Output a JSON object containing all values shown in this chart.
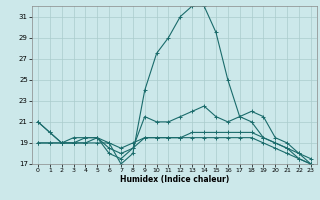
{
  "xlabel": "Humidex (Indice chaleur)",
  "bg_color": "#cce8ea",
  "grid_color": "#aacccc",
  "line_color": "#1a6b6b",
  "xlim": [
    -0.5,
    23.5
  ],
  "ylim": [
    17,
    32
  ],
  "yticks": [
    17,
    19,
    21,
    23,
    25,
    27,
    29,
    31
  ],
  "xticks": [
    0,
    1,
    2,
    3,
    4,
    5,
    6,
    7,
    8,
    9,
    10,
    11,
    12,
    13,
    14,
    15,
    16,
    17,
    18,
    19,
    20,
    21,
    22,
    23
  ],
  "lines": [
    {
      "x": [
        0,
        1,
        2,
        3,
        4,
        5,
        6,
        7,
        8,
        9,
        10,
        11,
        12,
        13,
        14,
        15,
        16,
        17,
        18,
        19,
        20,
        21,
        22,
        23
      ],
      "y": [
        21.0,
        20.0,
        19.0,
        19.0,
        19.0,
        19.5,
        19.0,
        17.0,
        18.0,
        24.0,
        27.5,
        29.0,
        31.0,
        32.0,
        32.0,
        29.5,
        25.0,
        21.5,
        21.0,
        19.5,
        19.0,
        18.5,
        17.5,
        17.0
      ]
    },
    {
      "x": [
        0,
        1,
        2,
        3,
        4,
        5,
        6,
        7,
        8,
        9,
        10,
        11,
        12,
        13,
        14,
        15,
        16,
        17,
        18,
        19,
        20,
        21,
        22,
        23
      ],
      "y": [
        21.0,
        20.0,
        19.0,
        19.5,
        19.5,
        19.5,
        18.5,
        18.0,
        18.5,
        21.5,
        21.0,
        21.0,
        21.5,
        22.0,
        22.5,
        21.5,
        21.0,
        21.5,
        22.0,
        21.5,
        19.5,
        19.0,
        18.0,
        17.5
      ]
    },
    {
      "x": [
        0,
        1,
        2,
        3,
        4,
        5,
        6,
        7,
        8,
        9,
        10,
        11,
        12,
        13,
        14,
        15,
        16,
        17,
        18,
        19,
        20,
        21,
        22,
        23
      ],
      "y": [
        19.0,
        19.0,
        19.0,
        19.0,
        19.5,
        19.5,
        18.0,
        17.5,
        18.5,
        19.5,
        19.5,
        19.5,
        19.5,
        20.0,
        20.0,
        20.0,
        20.0,
        20.0,
        20.0,
        19.5,
        19.0,
        18.5,
        18.0,
        17.0
      ]
    },
    {
      "x": [
        0,
        1,
        2,
        3,
        4,
        5,
        6,
        7,
        8,
        9,
        10,
        11,
        12,
        13,
        14,
        15,
        16,
        17,
        18,
        19,
        20,
        21,
        22,
        23
      ],
      "y": [
        19.0,
        19.0,
        19.0,
        19.0,
        19.0,
        19.0,
        19.0,
        18.5,
        19.0,
        19.5,
        19.5,
        19.5,
        19.5,
        19.5,
        19.5,
        19.5,
        19.5,
        19.5,
        19.5,
        19.0,
        18.5,
        18.0,
        17.5,
        17.0
      ]
    }
  ]
}
